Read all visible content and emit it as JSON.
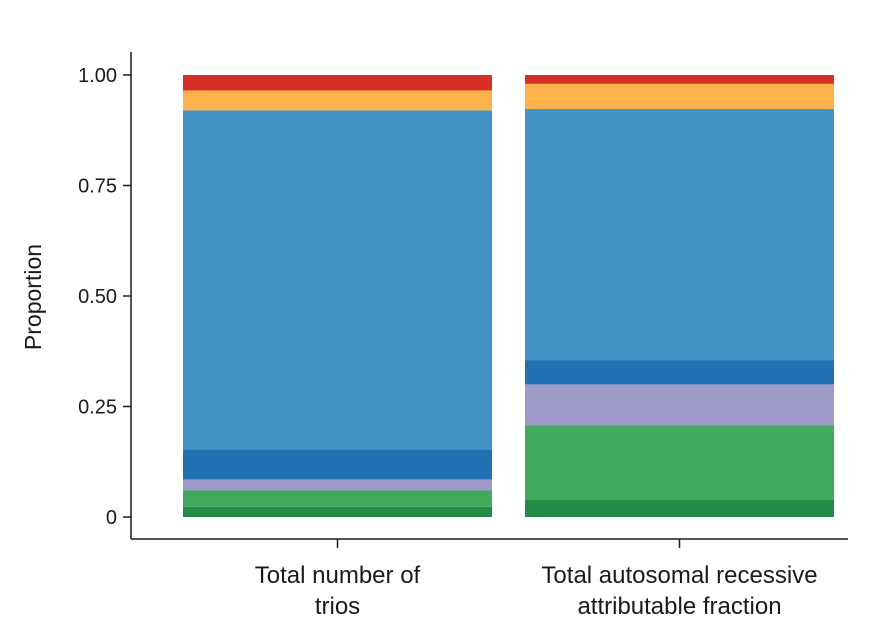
{
  "chart_data": {
    "type": "bar",
    "stacked": true,
    "ylabel": "Proportion",
    "ylim": [
      0,
      1
    ],
    "yticks": [
      0,
      0.25,
      0.5,
      0.75,
      1.0
    ],
    "ytick_labels": [
      "0",
      "0.25",
      "0.50",
      "0.75",
      "1.00"
    ],
    "categories": [
      [
        "Total number of",
        "trios"
      ],
      [
        "Total autosomal recessive",
        "attributable fraction"
      ]
    ],
    "series": [
      {
        "color": "#238B45",
        "values": [
          0.023,
          0.04
        ]
      },
      {
        "color": "#41AB5D",
        "values": [
          0.037,
          0.167
        ]
      },
      {
        "color": "#9E9AC8",
        "values": [
          0.025,
          0.093
        ]
      },
      {
        "color": "#2171B5",
        "values": [
          0.068,
          0.055
        ]
      },
      {
        "color": "#4292C6",
        "values": [
          0.767,
          0.568
        ]
      },
      {
        "color": "#FEB24C",
        "values": [
          0.045,
          0.057
        ]
      },
      {
        "color": "#D73027",
        "values": [
          0.035,
          0.02
        ]
      }
    ],
    "legend": "none",
    "grid": false
  }
}
